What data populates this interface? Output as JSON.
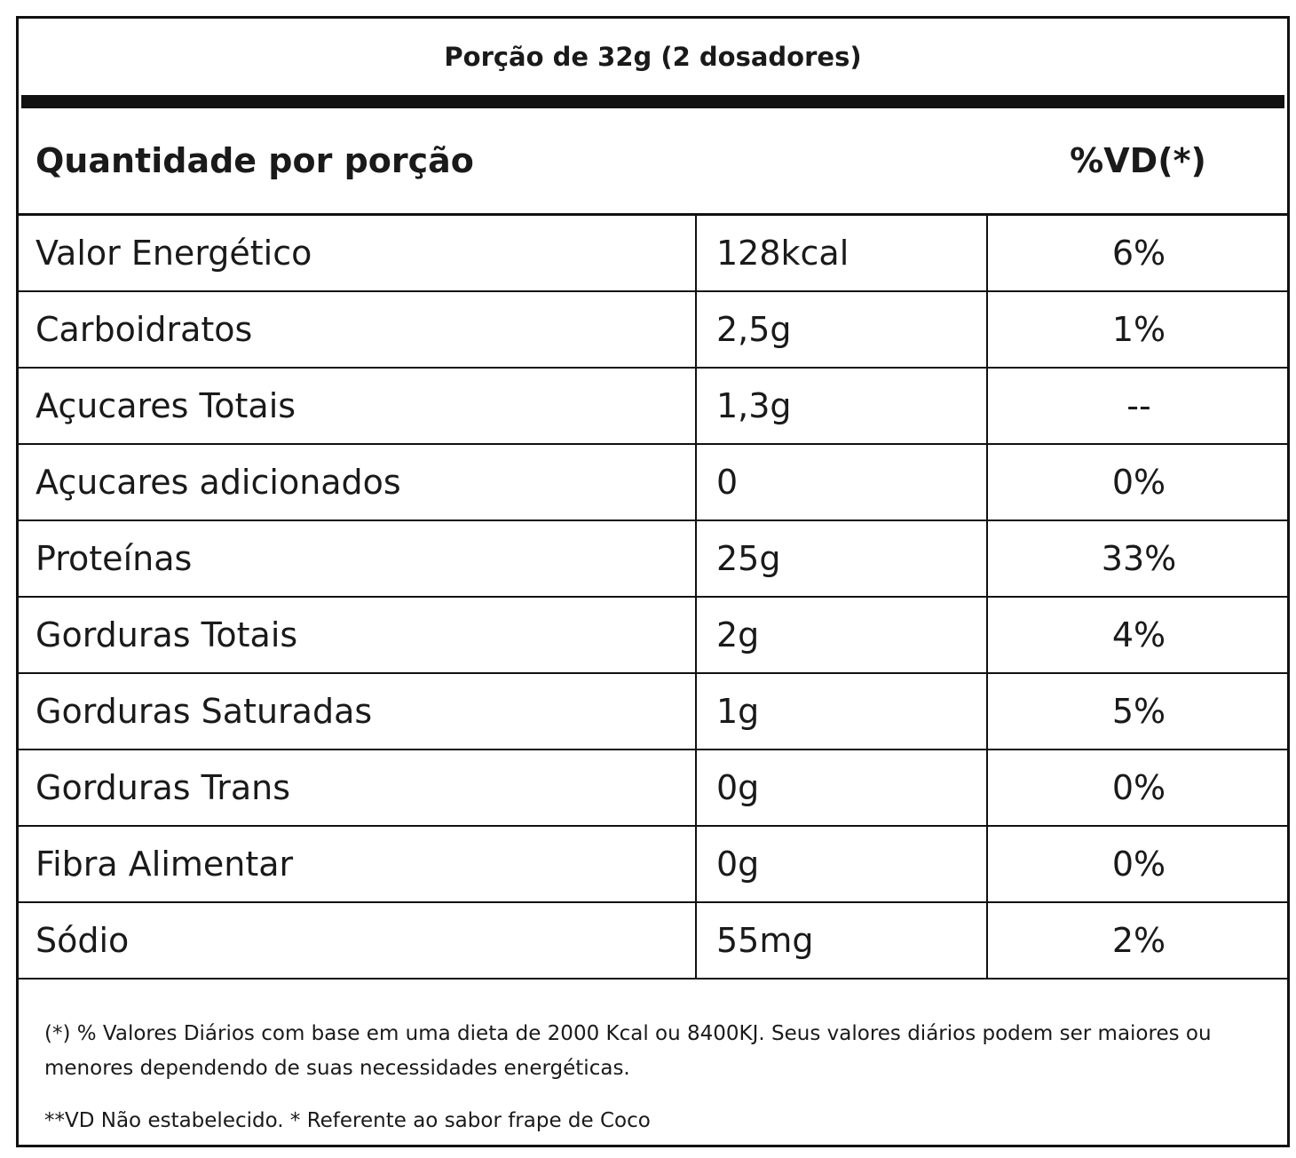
{
  "serving_size": "Porção de 32g (2 dosadores)",
  "header": {
    "left": "Quantidade por porção",
    "right": "%VD(*)"
  },
  "rows": [
    {
      "name": "Valor Energético",
      "amount": "128kcal",
      "vd": "6%"
    },
    {
      "name": "Carboidratos",
      "amount": "2,5g",
      "vd": "1%"
    },
    {
      "name": "Açucares Totais",
      "amount": "1,3g",
      "vd": "--"
    },
    {
      "name": "Açucares adicionados",
      "amount": "0",
      "vd": "0%"
    },
    {
      "name": "Proteínas",
      "amount": "25g",
      "vd": "33%"
    },
    {
      "name": "Gorduras Totais",
      "amount": "2g",
      "vd": "4%"
    },
    {
      "name": "Gorduras Saturadas",
      "amount": "1g",
      "vd": "5%"
    },
    {
      "name": "Gorduras Trans",
      "amount": "0g",
      "vd": "0%"
    },
    {
      "name": "Fibra Alimentar",
      "amount": "0g",
      "vd": "0%"
    },
    {
      "name": "Sódio",
      "amount": "55mg",
      "vd": "2%"
    }
  ],
  "footnote": "(*) % Valores Diários com base em uma dieta de 2000 Kcal ou 8400KJ. Seus valores diários podem ser maiores ou menores dependendo de suas necessidades energéticas.",
  "footnote2": "**VD Não estabelecido. * Referente ao sabor frape de Coco"
}
